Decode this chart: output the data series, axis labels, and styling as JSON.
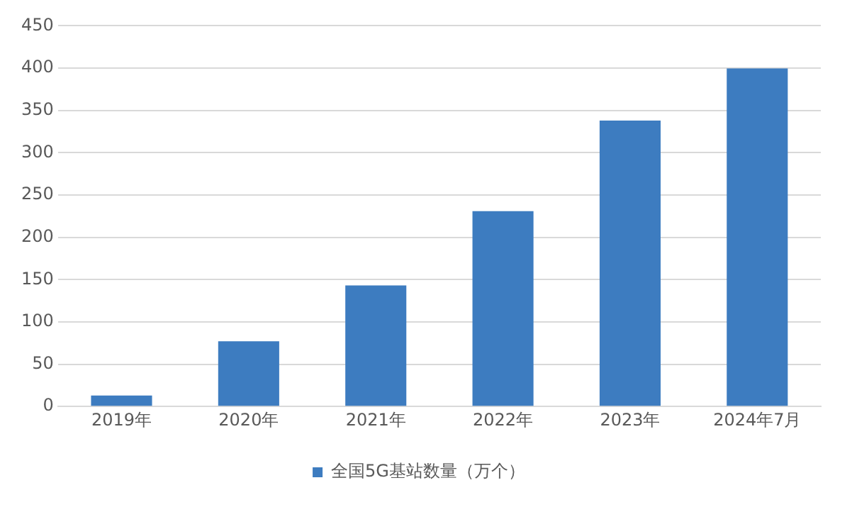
{
  "chart_data": {
    "type": "bar",
    "categories": [
      "2019年",
      "2020年",
      "2021年",
      "2022年",
      "2023年",
      "2024年7月"
    ],
    "series": [
      {
        "name": "全国5G基站数量（万个）",
        "color": "#3d7cc0",
        "values": [
          13,
          77,
          143,
          231,
          338,
          399.6
        ]
      }
    ],
    "ylim": [
      0,
      450
    ],
    "yticks": [
      0,
      50,
      100,
      150,
      200,
      250,
      300,
      350,
      400,
      450
    ],
    "grid": "y",
    "legend": "bottom"
  }
}
